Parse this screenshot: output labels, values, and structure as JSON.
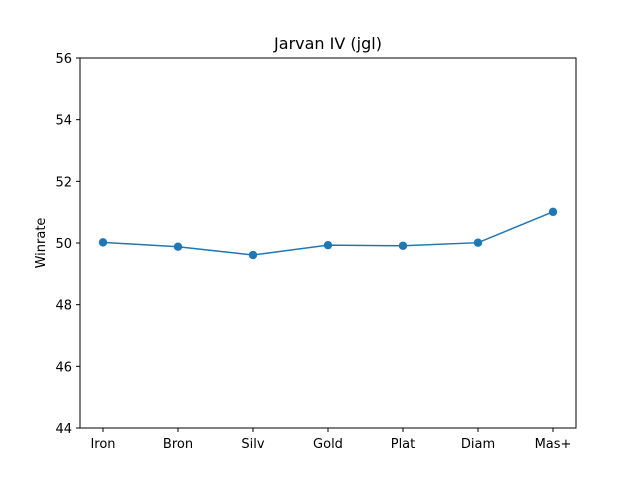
{
  "chart_data": {
    "type": "line",
    "title": "Jarvan IV (jgl)",
    "xlabel": "",
    "ylabel": "Winrate",
    "categories": [
      "Iron",
      "Bron",
      "Silv",
      "Gold",
      "Plat",
      "Diam",
      "Mas+"
    ],
    "series": [
      {
        "values": [
          50.02,
          49.88,
          49.61,
          49.93,
          49.91,
          50.01,
          51.01
        ]
      }
    ],
    "ylim": [
      44,
      56
    ],
    "yticks": [
      "44",
      "46",
      "48",
      "50",
      "52",
      "54",
      "56"
    ],
    "grid": false,
    "line_color": "#1f77b4"
  }
}
